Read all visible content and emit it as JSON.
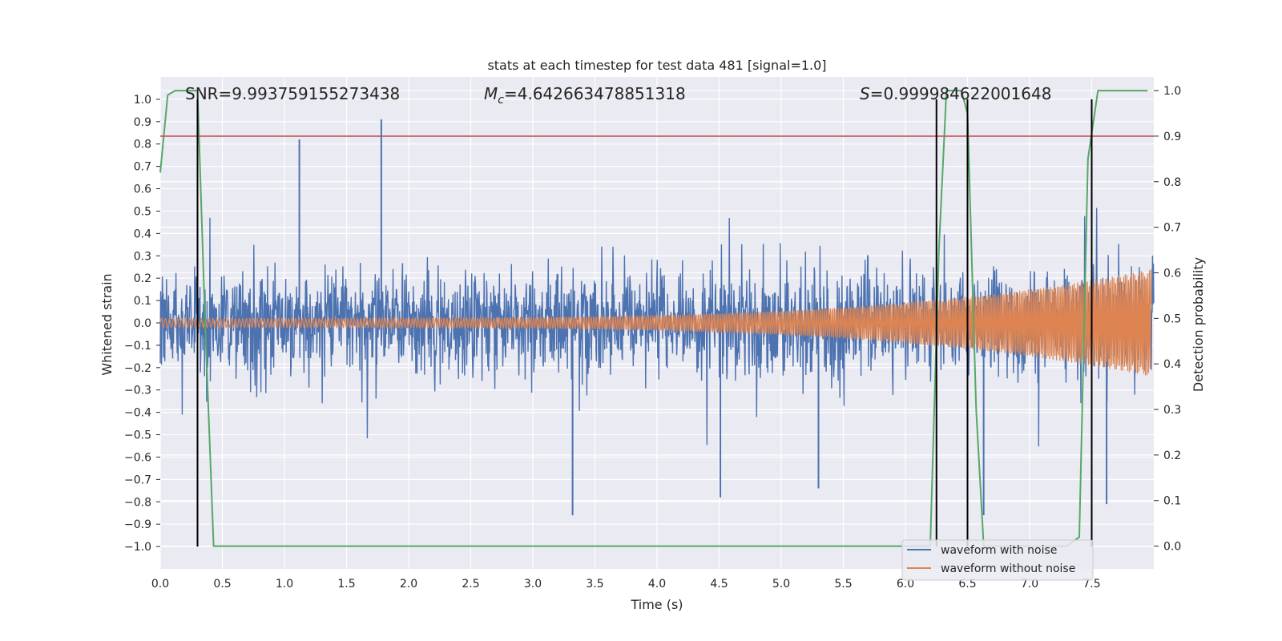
{
  "chart_data": {
    "type": "line",
    "title": "stats at each timestep for test data 481 [signal=1.0]",
    "xlabel": "Time (s)",
    "ylabel": "Whitened strain",
    "ylabel_right": "Detection probability",
    "xlim": [
      0.0,
      8.0
    ],
    "ylim": [
      -1.1,
      1.1
    ],
    "ylim_right": [
      -0.05,
      1.03
    ],
    "xticks": [
      "0.0",
      "0.5",
      "1.0",
      "1.5",
      "2.0",
      "2.5",
      "3.0",
      "3.5",
      "4.0",
      "4.5",
      "5.0",
      "5.5",
      "6.0",
      "6.5",
      "7.0",
      "7.5"
    ],
    "yticks": [
      "1.0",
      "0.9",
      "0.8",
      "0.7",
      "0.6",
      "0.5",
      "0.4",
      "0.3",
      "0.2",
      "0.1",
      "0.0",
      "−0.1",
      "−0.2",
      "−0.3",
      "−0.4",
      "−0.5",
      "−0.6",
      "−0.7",
      "−0.8",
      "−0.9",
      "−1.0"
    ],
    "yticks_right": [
      "1.0",
      "0.9",
      "0.8",
      "0.7",
      "0.6",
      "0.5",
      "0.4",
      "0.3",
      "0.2",
      "0.1",
      "0.0"
    ],
    "annotations": {
      "snr": "SNR=9.993759155273438",
      "mc_symbol": "M",
      "mc_sub": "c",
      "mc_value": "=4.642663478851318",
      "s_symbol": "S",
      "s_value": "=0.999984622001648"
    },
    "threshold_right": 0.9,
    "vertical_markers": [
      0.3,
      6.25,
      6.5,
      7.5
    ],
    "series": [
      {
        "name": "waveform with noise",
        "color": "#4c72b0",
        "envelope_peak_pos": 0.92,
        "envelope_peak_neg": -0.86,
        "typical_amplitude": 0.3
      },
      {
        "name": "waveform without noise",
        "color": "#dd8452",
        "start_amplitude": 0.02,
        "end_amplitude": 0.24
      },
      {
        "name": "detection probability",
        "color": "#55a868",
        "x": [
          0.0,
          0.06,
          0.12,
          0.2,
          0.3,
          0.36,
          0.43,
          6.2,
          6.27,
          6.33,
          6.4,
          6.45,
          6.5,
          6.57,
          6.63,
          6.75,
          7.3,
          7.4,
          7.47,
          7.55,
          7.95
        ],
        "y": [
          0.82,
          0.99,
          1.0,
          1.0,
          1.0,
          0.5,
          0.0,
          0.0,
          0.65,
          1.0,
          1.0,
          1.0,
          0.95,
          0.3,
          0.0,
          0.0,
          0.0,
          0.02,
          0.85,
          1.0,
          1.0
        ]
      }
    ],
    "legend": [
      "waveform with noise",
      "waveform without noise"
    ],
    "legend_position": "lower-right",
    "grid": true
  }
}
